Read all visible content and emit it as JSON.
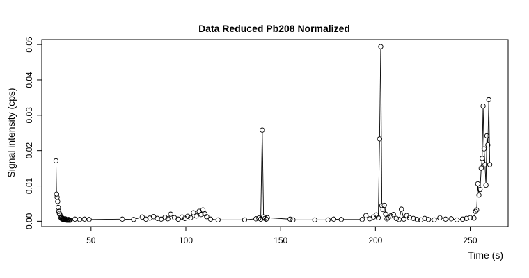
{
  "chart_data": {
    "type": "line",
    "title": "Data Reduced Pb208 Normalized",
    "xlabel": "Time (s)",
    "ylabel": "Signal intensity (cps)",
    "xlim": [
      24,
      270
    ],
    "ylim": [
      -0.0015,
      0.0514
    ],
    "x_ticks": [
      50,
      100,
      150,
      200,
      250
    ],
    "y_ticks": [
      0.0,
      0.01,
      0.02,
      0.03,
      0.04,
      0.05
    ],
    "y_tick_labels": [
      "0.00",
      "0.01",
      "0.02",
      "0.03",
      "0.04",
      "0.05"
    ],
    "marker": "open-circle",
    "grid": false,
    "series": [
      {
        "x": [
          31.5,
          31.8,
          32.1,
          32.4,
          32.7,
          33.0,
          33.3,
          33.6,
          33.9,
          34.2,
          34.5,
          34.8,
          35.1,
          35.4,
          35.7,
          36.0,
          36.3,
          36.6,
          36.9,
          37.2,
          37.5,
          37.8,
          38.1,
          38.4,
          38.7,
          39.0,
          41.5,
          44.0,
          46.5,
          49.0,
          66.5,
          72.5,
          77.0,
          79.0,
          81.0,
          83.0,
          85.0,
          87.0,
          89.0,
          90.5,
          92.0,
          94.0,
          96.0,
          98.0,
          99.5,
          101.0,
          102.5,
          104.0,
          105.5,
          107.0,
          108.0,
          109.0,
          110.0,
          111.0,
          113.0,
          117.0,
          131.0,
          137.0,
          138.5,
          139.5,
          140.3,
          141.0,
          141.7,
          142.4,
          143.0,
          155.0,
          156.5,
          168.0,
          175.0,
          178.0,
          182.0,
          193.0,
          195.0,
          197.0,
          199.0,
          200.5,
          201.5,
          202.2,
          202.8,
          203.4,
          204.0,
          204.7,
          205.4,
          206.1,
          206.8,
          208.0,
          209.5,
          211.0,
          212.5,
          213.7,
          215.0,
          216.5,
          218.0,
          220.0,
          222.0,
          224.0,
          226.0,
          228.0,
          231.0,
          234.0,
          237.0,
          240.0,
          243.0,
          246.0,
          248.0,
          250.0,
          252.0,
          252.8,
          253.4,
          254.0,
          254.6,
          255.2,
          255.8,
          256.3,
          256.8,
          257.3,
          257.8,
          258.3,
          258.8,
          259.3,
          259.8,
          260.3
        ],
        "y": [
          0.0171,
          0.0077,
          0.0068,
          0.0056,
          0.0039,
          0.0028,
          0.0022,
          0.0018,
          0.0012,
          0.0009,
          0.0011,
          0.0006,
          0.0008,
          0.0005,
          0.0006,
          0.0004,
          0.0007,
          0.0004,
          0.0005,
          0.0003,
          0.0004,
          0.0003,
          0.0005,
          0.0003,
          0.0004,
          0.0003,
          0.0006,
          0.0005,
          0.0006,
          0.0005,
          0.0006,
          0.0005,
          0.0012,
          0.0006,
          0.0009,
          0.0013,
          0.0008,
          0.0006,
          0.0011,
          0.0007,
          0.002,
          0.001,
          0.0006,
          0.0012,
          0.0008,
          0.0014,
          0.001,
          0.0024,
          0.0015,
          0.0028,
          0.0019,
          0.0032,
          0.0021,
          0.0013,
          0.0006,
          0.0004,
          0.0004,
          0.0007,
          0.0009,
          0.0006,
          0.0258,
          0.0012,
          0.0008,
          0.0006,
          0.001,
          0.0006,
          0.0004,
          0.0004,
          0.0004,
          0.0006,
          0.0005,
          0.0005,
          0.0016,
          0.0007,
          0.0012,
          0.0018,
          0.001,
          0.0233,
          0.0494,
          0.0044,
          0.0033,
          0.0045,
          0.002,
          0.0007,
          0.001,
          0.0015,
          0.0019,
          0.0008,
          0.0005,
          0.0034,
          0.0006,
          0.0016,
          0.001,
          0.0008,
          0.0005,
          0.0004,
          0.0008,
          0.0005,
          0.0004,
          0.001,
          0.0006,
          0.0007,
          0.0004,
          0.0006,
          0.0008,
          0.001,
          0.0009,
          0.0028,
          0.0032,
          0.0106,
          0.0074,
          0.009,
          0.015,
          0.0178,
          0.0326,
          0.0205,
          0.016,
          0.0102,
          0.0242,
          0.0216,
          0.0344,
          0.016
        ]
      }
    ]
  }
}
